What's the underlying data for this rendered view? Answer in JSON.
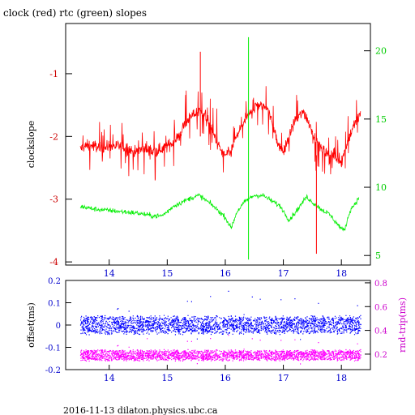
{
  "title": "clock (red) rtc (green) slopes",
  "footer": "2016-11-13  dilaton.physics.ubc.ca",
  "colors": {
    "clock": "#ff0000",
    "rtc": "#00ee00",
    "offset": "#0000ff",
    "rndtrip": "#ff00ff",
    "axis_main_left": "#cc0000",
    "axis_main_right": "#00cc00",
    "axis_bottom_left": "#0000cc",
    "axis_bottom_right": "#cc00cc"
  },
  "chart_data": [
    {
      "type": "line",
      "title": "clock (red) rtc (green) slopes",
      "ylabel": "clockslope",
      "x_ticks": [
        "14",
        "15",
        "16",
        "17",
        "18"
      ],
      "xlim": [
        13.25,
        18.5
      ],
      "y_left": {
        "label": "clockslope",
        "lim": [
          -4.05,
          -0.2
        ],
        "ticks": [
          "-1",
          "-2",
          "-3",
          "-4"
        ]
      },
      "y_right": {
        "label": "",
        "lim": [
          4.3,
          22.0
        ],
        "ticks": [
          "20",
          "15",
          "10",
          "5"
        ]
      },
      "series": [
        {
          "name": "clock (red)",
          "axis": "left",
          "x": [
            13.5,
            13.6,
            13.75,
            13.9,
            14.0,
            14.15,
            14.3,
            14.45,
            14.6,
            14.75,
            14.9,
            15.0,
            15.1,
            15.2,
            15.3,
            15.45,
            15.55,
            15.6,
            15.7,
            15.8,
            15.9,
            16.0,
            16.1,
            16.2,
            16.3,
            16.45,
            16.55,
            16.7,
            16.8,
            16.9,
            17.0,
            17.1,
            17.2,
            17.35,
            17.45,
            17.55,
            17.7,
            17.85,
            18.0,
            18.1,
            18.2,
            18.33
          ],
          "values": [
            -2.2,
            -2.15,
            -2.15,
            -2.2,
            -2.15,
            -2.15,
            -2.2,
            -2.25,
            -2.2,
            -2.25,
            -2.2,
            -2.15,
            -2.1,
            -2.0,
            -1.8,
            -1.65,
            -1.6,
            -1.6,
            -1.75,
            -1.95,
            -2.2,
            -2.3,
            -2.25,
            -2.0,
            -1.8,
            -1.6,
            -1.5,
            -1.5,
            -1.75,
            -2.1,
            -2.25,
            -2.0,
            -1.75,
            -1.6,
            -1.8,
            -2.05,
            -2.25,
            -2.3,
            -2.4,
            -2.1,
            -1.85,
            -1.65
          ]
        },
        {
          "name": "rtc (green)",
          "axis": "right",
          "x": [
            13.5,
            13.75,
            14.0,
            14.25,
            14.5,
            14.75,
            14.9,
            15.0,
            15.1,
            15.25,
            15.4,
            15.55,
            15.65,
            15.8,
            16.0,
            16.1,
            16.2,
            16.35,
            16.5,
            16.65,
            16.8,
            16.95,
            17.1,
            17.25,
            17.4,
            17.5,
            17.65,
            17.8,
            17.95,
            18.05,
            18.15,
            18.3
          ],
          "values": [
            8.6,
            8.4,
            8.3,
            8.2,
            8.1,
            7.9,
            7.9,
            8.2,
            8.6,
            8.9,
            9.2,
            9.4,
            9.1,
            8.6,
            7.8,
            7.0,
            8.2,
            9.0,
            9.4,
            9.4,
            9.0,
            8.6,
            7.6,
            8.4,
            9.3,
            8.9,
            8.4,
            8.0,
            7.2,
            6.8,
            8.3,
            9.2
          ]
        }
      ],
      "spikes": [
        {
          "series": "clock (red)",
          "x": 15.57,
          "values": [
            -0.65,
            -2.0
          ]
        },
        {
          "series": "rtc (green)",
          "x": 16.4,
          "values": [
            21.0,
            4.7
          ]
        },
        {
          "series": "clock (red)",
          "x": 17.57,
          "values": [
            -2.3,
            -3.87
          ]
        }
      ]
    },
    {
      "type": "scatter",
      "title": "",
      "xlabel": "",
      "x_ticks": [
        "14",
        "15",
        "16",
        "17",
        "18"
      ],
      "xlim": [
        13.25,
        18.5
      ],
      "y_left": {
        "label": "offset(ms)",
        "lim": [
          -0.2,
          0.2
        ],
        "ticks": [
          "0.2",
          "0.1",
          "0",
          "-0.1",
          "-0.2"
        ]
      },
      "y_right": {
        "label": "rnd-trip(ms)",
        "lim": [
          0.07,
          0.82
        ],
        "ticks": [
          "0.8",
          "0.6",
          "0.4",
          "0.2"
        ]
      },
      "series": [
        {
          "name": "offset",
          "axis": "left",
          "x_range": [
            13.5,
            18.33
          ],
          "center": 0.0,
          "spread": 0.045
        },
        {
          "name": "rnd-trip",
          "axis": "right",
          "x_range": [
            13.5,
            18.33
          ],
          "center": 0.19,
          "spread": 0.05
        }
      ]
    }
  ]
}
